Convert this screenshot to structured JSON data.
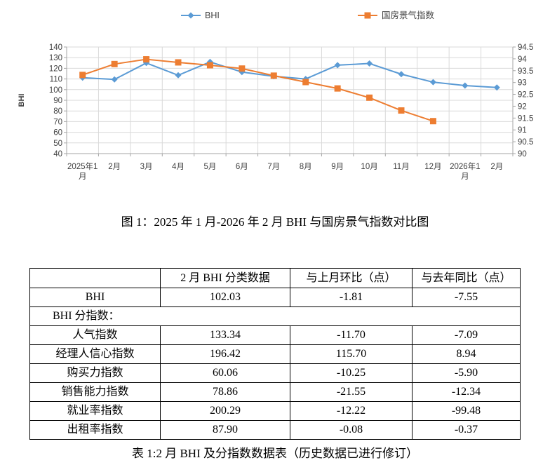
{
  "colors": {
    "bhi_series": "#5B9BD5",
    "climate_series": "#ED7D31",
    "gridline": "#D9D9D9",
    "axis_line": "#A6A6A6",
    "axis_text": "#404040"
  },
  "chart_data": {
    "type": "line",
    "title": "",
    "grid": true,
    "legend_position": "top",
    "categories": [
      "2025年1月",
      "2月",
      "3月",
      "4月",
      "5月",
      "6月",
      "7月",
      "8月",
      "9月",
      "10月",
      "11月",
      "12月",
      "2026年1月",
      "2月"
    ],
    "series": [
      {
        "name": "BHI",
        "axis": "left",
        "marker": "diamond",
        "color": "#5B9BD5",
        "values": [
          111.2,
          109.58,
          125.0,
          113.5,
          126.0,
          116.5,
          112.5,
          110.0,
          123.0,
          124.5,
          114.5,
          107.0,
          103.84,
          102.03
        ]
      },
      {
        "name": "国房景气指数",
        "axis": "right",
        "marker": "square",
        "color": "#ED7D31",
        "values": [
          93.32,
          93.78,
          93.98,
          93.85,
          93.73,
          93.59,
          93.29,
          93.02,
          92.75,
          92.36,
          91.82,
          91.37,
          null,
          null
        ]
      }
    ],
    "left_axis": {
      "label": "BHI",
      "min": 40,
      "max": 140,
      "step": 10
    },
    "right_axis": {
      "label": "",
      "min": 90,
      "max": 94.5,
      "step": 0.5
    }
  },
  "figure_caption": "图 1：2025 年 1 月-2026 年 2 月 BHI 与国房景气指数对比图",
  "table": {
    "headers": [
      "",
      "2 月 BHI 分类数据",
      "与上月环比（点）",
      "与去年同比（点）"
    ],
    "rows": [
      {
        "label": "BHI",
        "values": [
          "102.03",
          "-1.81",
          "-7.55"
        ]
      },
      {
        "label": "BHI 分指数：",
        "values": []
      },
      {
        "label": "人气指数",
        "values": [
          "133.34",
          "-11.70",
          "-7.09"
        ]
      },
      {
        "label": "经理人信心指数",
        "values": [
          "196.42",
          "115.70",
          "8.94"
        ]
      },
      {
        "label": "购买力指数",
        "values": [
          "60.06",
          "-10.25",
          "-5.90"
        ]
      },
      {
        "label": "销售能力指数",
        "values": [
          "78.86",
          "-21.55",
          "-12.34"
        ]
      },
      {
        "label": "就业率指数",
        "values": [
          "200.29",
          "-12.22",
          "-99.48"
        ]
      },
      {
        "label": "出租率指数",
        "values": [
          "87.90",
          "-0.08",
          "-0.37"
        ]
      }
    ]
  },
  "table_caption": "表 1:2 月 BHI 及分指数数据表（历史数据已进行修订）"
}
